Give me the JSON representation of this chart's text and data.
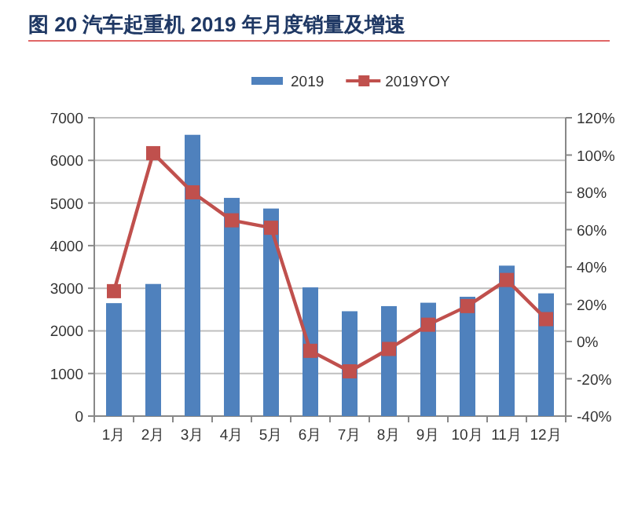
{
  "chart_data": {
    "type": "bar",
    "title": "图 20 汽车起重机 2019 年月度销量及增速",
    "categories": [
      "1月",
      "2月",
      "3月",
      "4月",
      "5月",
      "6月",
      "7月",
      "8月",
      "9月",
      "10月",
      "11月",
      "12月"
    ],
    "series": [
      {
        "name": "2019",
        "color": "#4f81bd",
        "values": [
          2650,
          3100,
          6600,
          5120,
          4870,
          3020,
          2460,
          2580,
          2660,
          2800,
          3530,
          2880
        ]
      },
      {
        "name": "2019YOY",
        "type": "line",
        "axis": "y2",
        "color": "#c0504d",
        "marker": "square",
        "values": [
          27,
          101,
          80,
          65,
          61,
          -5,
          -16,
          -4,
          9,
          19,
          33,
          12
        ]
      }
    ],
    "ylim": [
      0,
      7000
    ],
    "yticks": [
      0,
      1000,
      2000,
      3000,
      4000,
      5000,
      6000,
      7000
    ],
    "y2lim": [
      -40,
      120
    ],
    "y2ticks": [
      {
        "value": -40,
        "label": "-40%"
      },
      {
        "value": -20,
        "label": "-20%"
      },
      {
        "value": 0,
        "label": "0%"
      },
      {
        "value": 20,
        "label": "20%"
      },
      {
        "value": 40,
        "label": "40%"
      },
      {
        "value": 60,
        "label": "60%"
      },
      {
        "value": 80,
        "label": "80%"
      },
      {
        "value": 100,
        "label": "100%"
      },
      {
        "value": 120,
        "label": "120%"
      }
    ],
    "grid": "y",
    "legend": "top"
  }
}
